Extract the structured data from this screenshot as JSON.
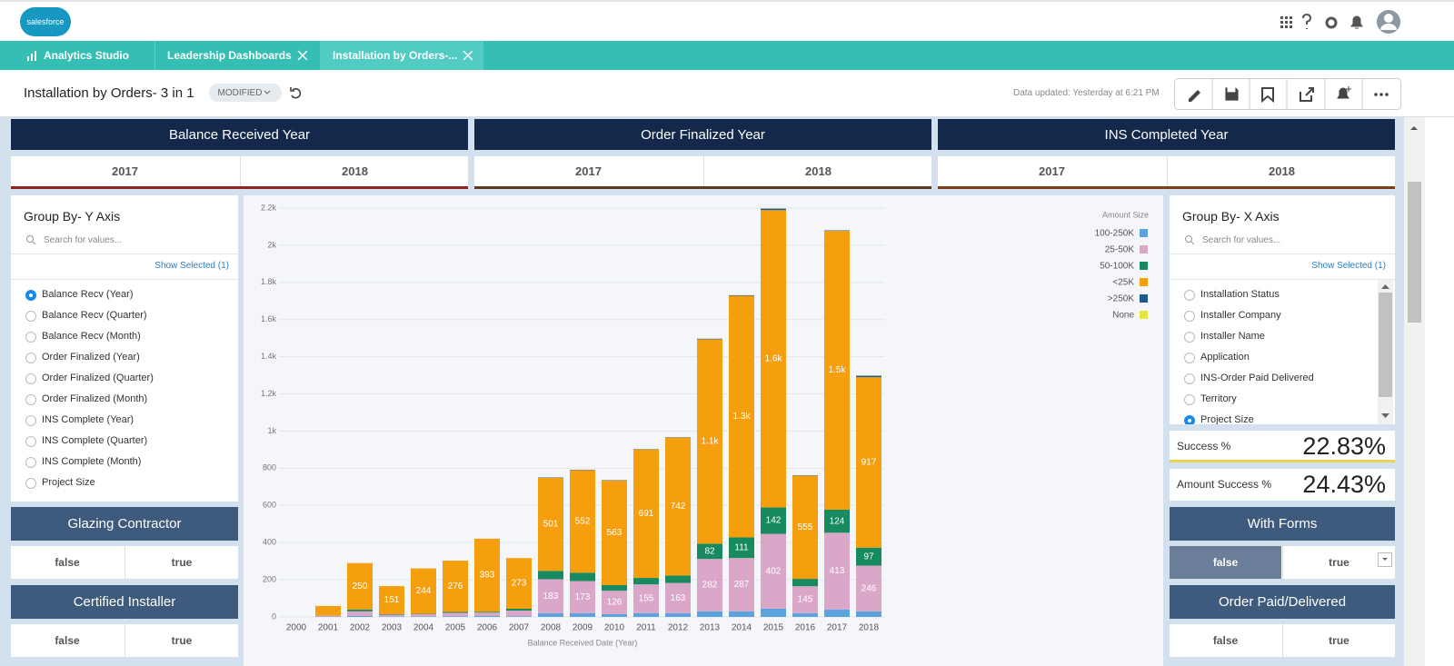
{
  "header": {
    "logo": "salesforce"
  },
  "tabs": [
    "Analytics Studio",
    "Leadership Dashboards",
    "Installation by Orders-..."
  ],
  "toolbar": {
    "title": "Installation by Orders- 3 in 1",
    "status": "MODIFIED",
    "updated": "Data updated: Yesterday at 6:21 PM"
  },
  "filters": [
    {
      "title": "Balance Received Year",
      "options": [
        "2017",
        "2018"
      ]
    },
    {
      "title": "Order Finalized Year",
      "options": [
        "2017",
        "2018"
      ]
    },
    {
      "title": "INS Completed Year",
      "options": [
        "2017",
        "2018"
      ]
    }
  ],
  "y_axis_panel": {
    "title": "Group By- Y Axis",
    "search": "Search for values...",
    "show_selected": "Show Selected (1)",
    "selected": 0,
    "options": [
      "Balance Recv (Year)",
      "Balance Recv (Quarter)",
      "Balance Recv (Month)",
      "Order Finalized (Year)",
      "Order Finalized (Quarter)",
      "Order Finalized (Month)",
      "INS Complete (Year)",
      "INS Complete (Quarter)",
      "INS Complete (Month)",
      "Project Size"
    ]
  },
  "x_axis_panel": {
    "title": "Group By- X Axis",
    "search": "Search for values...",
    "show_selected": "Show Selected (1)",
    "selected": 6,
    "options": [
      "Installation Status",
      "Installer Company",
      "Installer Name",
      "Application",
      "INS-Order Paid Delivered",
      "Territory",
      "Project Size"
    ]
  },
  "metrics": [
    {
      "label": "Success %",
      "value": "22.83%"
    },
    {
      "label": "Amount Success %",
      "value": "24.43%"
    }
  ],
  "toggles": [
    {
      "title": "Glazing Contractor",
      "options": [
        "false",
        "true"
      ]
    },
    {
      "title": "Certified Installer",
      "options": [
        "false",
        "true"
      ]
    },
    {
      "title": "With Forms",
      "options": [
        "false",
        "true"
      ],
      "selected": 0
    },
    {
      "title": "Order Paid/Delivered",
      "options": [
        "false",
        "true"
      ]
    }
  ],
  "chart_data": {
    "type": "stacked-bar",
    "x_label": "Balance Received Date (Year)",
    "legend_title": "Amount Size",
    "grid": true,
    "categories": [
      "2000",
      "2001",
      "2002",
      "2003",
      "2004",
      "2005",
      "2006",
      "2007",
      "2008",
      "2009",
      "2010",
      "2011",
      "2012",
      "2013",
      "2014",
      "2015",
      "2016",
      "2017",
      "2018"
    ],
    "ylim": [
      0,
      2200
    ],
    "yticks": [
      0,
      200,
      400,
      600,
      800,
      {
        "value": 1000,
        "label": "1k"
      },
      {
        "value": 1200,
        "label": "1.2k"
      },
      {
        "value": 1400,
        "label": "1.4k"
      },
      {
        "value": 1600,
        "label": "1.6k"
      },
      {
        "value": 1800,
        "label": "1.8k"
      },
      {
        "value": 2000,
        "label": "2k"
      },
      {
        "value": 2200,
        "label": "2.2k"
      }
    ],
    "series": [
      {
        "name": "100-250K",
        "color": "#5ba3dc",
        "values": [
          0,
          2,
          5,
          2,
          3,
          4,
          5,
          4,
          20,
          20,
          15,
          20,
          20,
          30,
          30,
          45,
          20,
          40,
          30
        ]
      },
      {
        "name": "25-50K",
        "color": "#dba7c9",
        "values": [
          0,
          5,
          25,
          10,
          12,
          18,
          18,
          30,
          183,
          173,
          126,
          155,
          163,
          282,
          287,
          402,
          145,
          413,
          246
        ],
        "value_labels": [
          null,
          null,
          null,
          null,
          null,
          null,
          null,
          null,
          "183",
          "173",
          "126",
          "155",
          "163",
          "282",
          "287",
          "402",
          "145",
          "413",
          "246"
        ]
      },
      {
        "name": "50-100K",
        "color": "#178a5f",
        "values": [
          0,
          0,
          10,
          3,
          2,
          5,
          5,
          10,
          45,
          45,
          30,
          35,
          40,
          82,
          111,
          142,
          40,
          124,
          97
        ],
        "value_labels": [
          null,
          null,
          null,
          null,
          null,
          null,
          null,
          null,
          null,
          null,
          null,
          null,
          null,
          "82",
          "111",
          "142",
          null,
          "124",
          "97"
        ]
      },
      {
        "name": "<25K",
        "color": "#f59f0f",
        "values": [
          0,
          52,
          250,
          151,
          244,
          276,
          393,
          273,
          501,
          552,
          563,
          691,
          742,
          1100,
          1300,
          1600,
          555,
          1500,
          917
        ],
        "value_labels": [
          null,
          null,
          "250",
          "151",
          "244",
          "276",
          "393",
          "273",
          "501",
          "552",
          "563",
          "691",
          "742",
          "1.1k",
          "1.3k",
          "1.6k",
          "555",
          "1.5k",
          "917"
        ]
      },
      {
        "name": ">250K",
        "color": "#1f5b8a",
        "values": [
          0,
          0,
          0,
          0,
          0,
          0,
          0,
          0,
          2,
          2,
          2,
          2,
          2,
          3,
          3,
          8,
          2,
          3,
          8
        ]
      },
      {
        "name": "None",
        "color": "#e6e63e",
        "values": [
          0,
          0,
          0,
          0,
          0,
          0,
          0,
          0,
          0,
          0,
          0,
          0,
          0,
          0,
          0,
          0,
          0,
          0,
          0
        ]
      }
    ]
  }
}
